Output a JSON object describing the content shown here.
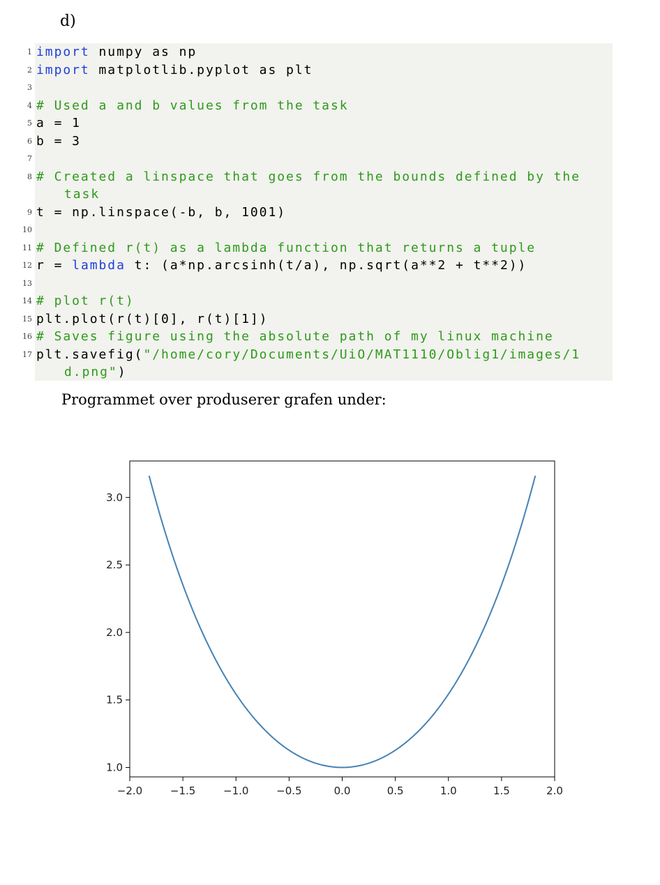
{
  "subsection_label": "d)",
  "code": {
    "lines": [
      {
        "n": "1",
        "parts": [
          {
            "t": "import",
            "c": "kw"
          },
          {
            "t": " numpy as np",
            "c": ""
          }
        ]
      },
      {
        "n": "2",
        "parts": [
          {
            "t": "import",
            "c": "kw"
          },
          {
            "t": " matplotlib.pyplot as plt",
            "c": ""
          }
        ]
      },
      {
        "n": "3",
        "parts": []
      },
      {
        "n": "4",
        "parts": [
          {
            "t": "# Used a and b values from the task",
            "c": "cm"
          }
        ]
      },
      {
        "n": "5",
        "parts": [
          {
            "t": "a = 1",
            "c": ""
          }
        ]
      },
      {
        "n": "6",
        "parts": [
          {
            "t": "b = 3",
            "c": ""
          }
        ]
      },
      {
        "n": "7",
        "parts": []
      },
      {
        "n": "8",
        "parts": [
          {
            "t": "# Created a linspace that goes from the bounds defined by the",
            "c": "cm"
          }
        ]
      },
      {
        "n": "",
        "cont": true,
        "parts": [
          {
            "t": "task",
            "c": "cm"
          }
        ]
      },
      {
        "n": "9",
        "parts": [
          {
            "t": "t = np.linspace(-b, b, 1001)",
            "c": ""
          }
        ]
      },
      {
        "n": "10",
        "parts": []
      },
      {
        "n": "11",
        "parts": [
          {
            "t": "# Defined r(t) as a lambda function that returns a tuple",
            "c": "cm"
          }
        ]
      },
      {
        "n": "12",
        "parts": [
          {
            "t": "r = ",
            "c": ""
          },
          {
            "t": "lambda",
            "c": "kw"
          },
          {
            "t": " t: (a*np.arcsinh(t/a), np.sqrt(a**2 + t**2))",
            "c": ""
          }
        ]
      },
      {
        "n": "13",
        "parts": []
      },
      {
        "n": "14",
        "parts": [
          {
            "t": "# plot r(t)",
            "c": "cm"
          }
        ]
      },
      {
        "n": "15",
        "parts": [
          {
            "t": "plt.plot(r(t)[0], r(t)[1])",
            "c": ""
          }
        ]
      },
      {
        "n": "16",
        "parts": [
          {
            "t": "# Saves figure using the absolute path of my linux machine",
            "c": "cm"
          }
        ]
      },
      {
        "n": "17",
        "parts": [
          {
            "t": "plt.savefig(",
            "c": ""
          },
          {
            "t": "\"/home/cory/Documents/UiO/MAT1110/Oblig1/images/1",
            "c": "st"
          }
        ]
      },
      {
        "n": "",
        "cont": true,
        "parts": [
          {
            "t": "d.png\"",
            "c": "st"
          },
          {
            "t": ")",
            "c": ""
          }
        ]
      }
    ]
  },
  "caption": "Programmet over produserer grafen under:",
  "chart_data": {
    "type": "line",
    "title": "",
    "xlabel": "",
    "ylabel": "",
    "xlim": [
      -2.0,
      2.0
    ],
    "ylim": [
      0.93,
      3.27
    ],
    "xticks": [
      "−2.0",
      "−1.5",
      "−1.0",
      "−0.5",
      "0.0",
      "0.5",
      "1.0",
      "1.5",
      "2.0"
    ],
    "xtick_values": [
      -2.0,
      -1.5,
      -1.0,
      -0.5,
      0.0,
      0.5,
      1.0,
      1.5,
      2.0
    ],
    "yticks": [
      "1.0",
      "1.5",
      "2.0",
      "2.5",
      "3.0"
    ],
    "ytick_values": [
      1.0,
      1.5,
      2.0,
      2.5,
      3.0
    ],
    "grid": false,
    "series": [
      {
        "color": "#4682b4",
        "x": [
          -1.818,
          -1.6,
          -1.4,
          -1.2,
          -1.0,
          -0.8,
          -0.6,
          -0.4,
          -0.2,
          0.0,
          0.2,
          0.4,
          0.6,
          0.8,
          1.0,
          1.2,
          1.4,
          1.6,
          1.818
        ],
        "y": [
          3.162,
          2.577,
          2.151,
          1.811,
          1.543,
          1.337,
          1.185,
          1.081,
          1.02,
          1.0,
          1.02,
          1.081,
          1.185,
          1.337,
          1.543,
          1.811,
          2.151,
          2.577,
          3.162
        ]
      }
    ]
  }
}
